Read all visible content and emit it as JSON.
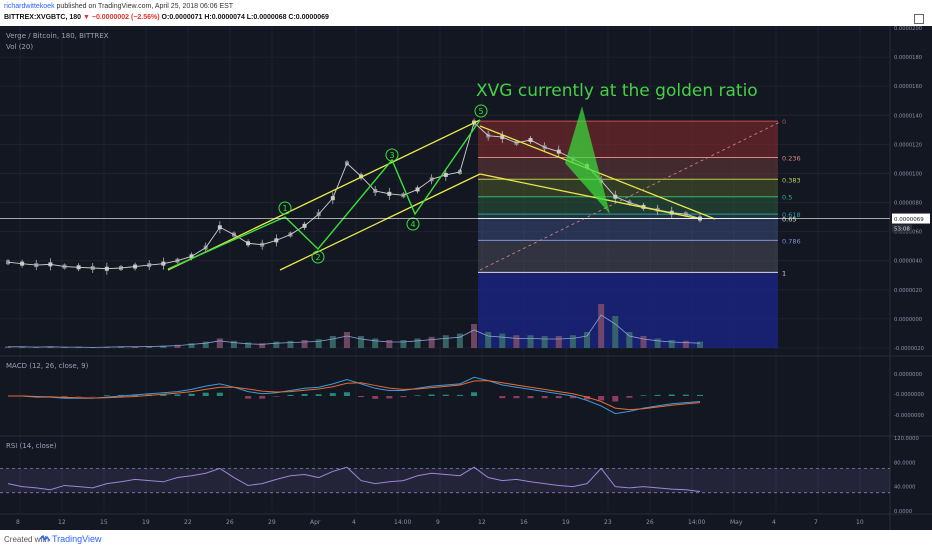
{
  "header": {
    "publisher": "richardwittekoek",
    "published_text": "published on TradingView.com, April 25, 2018 06:06 EST",
    "symbol_line_prefix": "BITTREX:XVGBTC, 180",
    "change_text": "−0.0000002 (−2.56%)",
    "ohlc_text": "O:0.0000071 H:0.0000074 L:0.0000068 C:0.0000069"
  },
  "panes": {
    "main_label": "Verge / Bitcoin, 180, BITTREX",
    "vol_label": "Vol (20)",
    "macd_label": "MACD (12, 26, close, 9)",
    "rsi_label": "RSI (14, close)"
  },
  "annotation": "XVG currently at the golden ratio",
  "footer": {
    "created": "Created with",
    "brand": "TradingView"
  },
  "colors": {
    "background": "#131722",
    "channel": "#e8e84a",
    "wave": "#3adf3a",
    "annotation": "#46d046",
    "candles": "#c9c9c9",
    "macd": "#3d9bd8",
    "signal": "#e56b35",
    "rsi": "#9b86d9"
  },
  "chart_data": {
    "type": "candlestick",
    "symbol": "XVGBTC",
    "exchange": "BITTREX",
    "interval": "180",
    "current_price": "0.0000069",
    "countdown": "53:08",
    "x_tick_labels": [
      "8",
      "12",
      "15",
      "19",
      "22",
      "26",
      "29",
      "Apr",
      "4",
      "14:00",
      "9",
      "12",
      "16",
      "19",
      "23",
      "26",
      "14:00",
      "May",
      "4",
      "7",
      "10"
    ],
    "price_axis_labels": [
      "0.0000200",
      "0.0000180",
      "0.0000160",
      "0.0000140",
      "0.0000120",
      "0.0000100",
      "0.0000080",
      "0.0000060",
      "0.0000040",
      "0.0000020",
      "0.0000000",
      "-0.0000020"
    ],
    "price_range": [
      -2e-06,
      2e-05
    ],
    "fib_levels": [
      {
        "label": "0",
        "price": 1.36e-05,
        "color": "#c0504d"
      },
      {
        "label": "0.236",
        "price": 1.11e-05,
        "color": "#d98880"
      },
      {
        "label": "0.383",
        "price": 9.6e-06,
        "color": "#b6d04a"
      },
      {
        "label": "0.5",
        "price": 8.4e-06,
        "color": "#3cb371"
      },
      {
        "label": "0.618",
        "price": 7.2e-06,
        "color": "#2e9d9d"
      },
      {
        "label": "0.65",
        "price": 6.9e-06,
        "color": "#d9d9d9"
      },
      {
        "label": "0.786",
        "price": 5.4e-06,
        "color": "#7d8fd9"
      },
      {
        "label": "1",
        "price": 3.2e-06,
        "color": "#d9d9d9"
      }
    ],
    "wave_labels": [
      "1",
      "2",
      "3",
      "4",
      "5"
    ],
    "price_series": [
      3.9,
      3.8,
      3.7,
      3.75,
      3.6,
      3.55,
      3.5,
      3.45,
      3.5,
      3.6,
      3.7,
      3.8,
      4.0,
      4.3,
      4.9,
      6.3,
      5.8,
      5.2,
      5.1,
      5.4,
      5.8,
      6.4,
      7.2,
      8.3,
      10.7,
      9.8,
      8.8,
      8.6,
      8.5,
      8.9,
      9.6,
      9.9,
      10.1,
      13.5,
      12.6,
      12.5,
      12.1,
      12.3,
      11.8,
      11.5,
      11.0,
      10.5,
      9.5,
      8.4,
      8.0,
      7.7,
      7.5,
      7.3,
      7.2,
      6.9
    ],
    "volume_series": [
      0.2,
      0.2,
      0.15,
      0.2,
      0.15,
      0.15,
      0.1,
      0.15,
      0.2,
      0.2,
      0.25,
      0.3,
      0.4,
      0.6,
      0.8,
      1.2,
      0.9,
      0.7,
      0.6,
      0.8,
      0.9,
      1.0,
      1.1,
      1.5,
      2.0,
      1.5,
      1.2,
      1.0,
      1.0,
      1.2,
      1.4,
      1.6,
      1.8,
      3.0,
      2.0,
      1.8,
      1.6,
      1.6,
      1.5,
      1.5,
      1.6,
      2.0,
      5.5,
      4.0,
      2.0,
      1.5,
      1.2,
      1.0,
      0.9,
      0.8
    ],
    "macd_axis_labels": [
      "0.0000000",
      "-0.0000000",
      "-0.0000000"
    ],
    "macd_series": [
      0,
      0,
      -0.05,
      -0.05,
      -0.1,
      -0.1,
      -0.1,
      -0.05,
      0,
      0.05,
      0.1,
      0.15,
      0.2,
      0.3,
      0.45,
      0.55,
      0.4,
      0.2,
      0.1,
      0.15,
      0.25,
      0.35,
      0.4,
      0.55,
      0.75,
      0.55,
      0.35,
      0.25,
      0.25,
      0.35,
      0.45,
      0.5,
      0.55,
      0.85,
      0.7,
      0.5,
      0.4,
      0.3,
      0.2,
      0.1,
      0,
      -0.2,
      -0.45,
      -0.8,
      -0.7,
      -0.55,
      -0.45,
      -0.35,
      -0.3,
      -0.25
    ],
    "signal_series": [
      0,
      0,
      -0.02,
      -0.04,
      -0.06,
      -0.08,
      -0.09,
      -0.08,
      -0.05,
      -0.02,
      0.03,
      0.08,
      0.13,
      0.2,
      0.3,
      0.4,
      0.4,
      0.32,
      0.22,
      0.18,
      0.2,
      0.26,
      0.32,
      0.42,
      0.58,
      0.6,
      0.48,
      0.36,
      0.3,
      0.32,
      0.38,
      0.44,
      0.5,
      0.68,
      0.7,
      0.6,
      0.5,
      0.4,
      0.3,
      0.2,
      0.1,
      -0.05,
      -0.25,
      -0.55,
      -0.62,
      -0.58,
      -0.5,
      -0.42,
      -0.36,
      -0.3
    ],
    "rsi_axis_labels": [
      "120.0000",
      "80.0000",
      "40.0000",
      "0.0000"
    ],
    "rsi_bands": [
      70,
      30
    ],
    "rsi_series": [
      45,
      40,
      38,
      35,
      42,
      40,
      38,
      45,
      48,
      52,
      50,
      48,
      55,
      58,
      62,
      70,
      55,
      42,
      45,
      52,
      58,
      60,
      55,
      65,
      72,
      50,
      45,
      48,
      50,
      58,
      62,
      60,
      58,
      72,
      55,
      50,
      52,
      48,
      45,
      42,
      40,
      45,
      70,
      40,
      38,
      40,
      38,
      36,
      35,
      32
    ]
  }
}
